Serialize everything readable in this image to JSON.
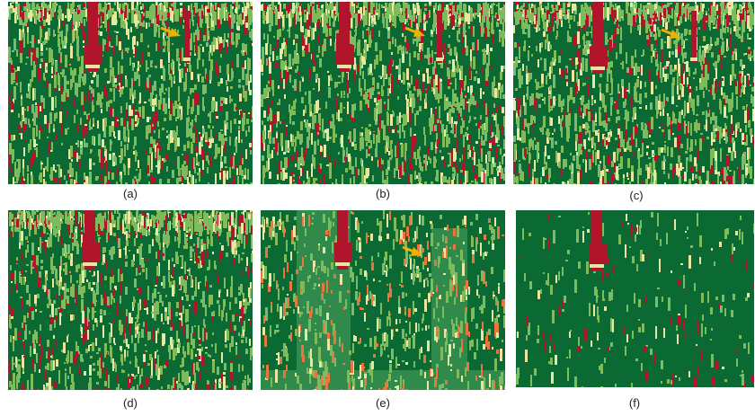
{
  "panels": [
    {
      "label": "(a)"
    },
    {
      "label": "(b)"
    },
    {
      "label": "(c)"
    },
    {
      "label": "(d)"
    },
    {
      "label": "(e)"
    },
    {
      "label": "(f)"
    }
  ],
  "colors": {
    "background_green": "#0b6a33",
    "light_green": "#2f8a4b",
    "pale_green": "#7dbb5c",
    "yellow": "#e8e6a0",
    "red": "#b0152b",
    "orange": "#e8763e",
    "arrow": "#f0b000"
  }
}
